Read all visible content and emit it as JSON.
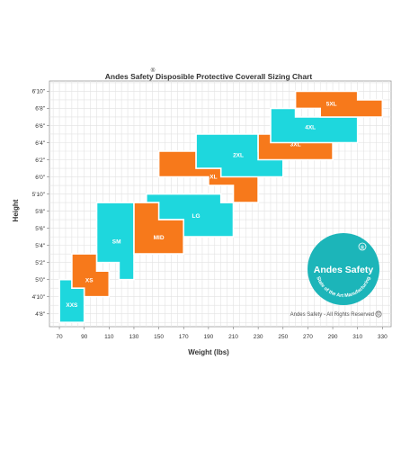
{
  "chart_data": {
    "type": "area",
    "title": "Andes Safety Disposible Protective Coverall Sizing Chart",
    "title_mark": "®",
    "xlabel": "Weight (lbs)",
    "ylabel": "Height",
    "x_ticks": [
      70,
      90,
      110,
      130,
      150,
      170,
      190,
      210,
      230,
      250,
      270,
      290,
      310,
      330
    ],
    "y_ticks": [
      {
        "label": "4'8\"",
        "inches": 56
      },
      {
        "label": "4'10\"",
        "inches": 58
      },
      {
        "label": "5'0\"",
        "inches": 60
      },
      {
        "label": "5'2\"",
        "inches": 62
      },
      {
        "label": "5'4\"",
        "inches": 64
      },
      {
        "label": "5'6\"",
        "inches": 66
      },
      {
        "label": "5'8\"",
        "inches": 68
      },
      {
        "label": "5'10\"",
        "inches": 70
      },
      {
        "label": "6'0\"",
        "inches": 72
      },
      {
        "label": "6'2\"",
        "inches": 74
      },
      {
        "label": "6'4\"",
        "inches": 76
      },
      {
        "label": "6'6\"",
        "inches": 78
      },
      {
        "label": "6'8\"",
        "inches": 80
      },
      {
        "label": "6'10\"",
        "inches": 82
      }
    ],
    "xlim": [
      62,
      337
    ],
    "ylim": [
      54.5,
      83.2
    ],
    "grid": true,
    "colors": {
      "cyan": "#1ed7dd",
      "orange": "#f7791b"
    },
    "regions": [
      {
        "name": "XXS",
        "color": "cyan",
        "outline": [
          [
            70,
            60
          ],
          [
            90,
            60
          ],
          [
            90,
            55
          ],
          [
            70,
            55
          ]
        ],
        "label_at": [
          80,
          56.8
        ]
      },
      {
        "name": "SM",
        "color": "cyan",
        "outline": [
          [
            100,
            69
          ],
          [
            130,
            69
          ],
          [
            130,
            60
          ],
          [
            118,
            60
          ],
          [
            118,
            62
          ],
          [
            100,
            62
          ]
        ],
        "label_at": [
          116,
          64.2
        ]
      },
      {
        "name": "XS",
        "color": "orange",
        "outline": [
          [
            80,
            63
          ],
          [
            100,
            63
          ],
          [
            100,
            61
          ],
          [
            110,
            61
          ],
          [
            110,
            58
          ],
          [
            90,
            58
          ],
          [
            90,
            59
          ],
          [
            80,
            59
          ]
        ],
        "label_at": [
          94,
          59.7
        ]
      },
      {
        "name": "LG",
        "color": "cyan",
        "outline": [
          [
            140,
            70
          ],
          [
            200,
            70
          ],
          [
            200,
            69
          ],
          [
            210,
            69
          ],
          [
            210,
            65
          ],
          [
            170,
            65
          ],
          [
            170,
            67
          ],
          [
            140,
            67
          ]
        ],
        "label_at": [
          180,
          67.2
        ]
      },
      {
        "name": "MID",
        "color": "orange",
        "outline": [
          [
            130,
            69
          ],
          [
            150,
            69
          ],
          [
            150,
            67
          ],
          [
            170,
            67
          ],
          [
            170,
            63
          ],
          [
            130,
            63
          ]
        ],
        "label_at": [
          150,
          64.7
        ]
      },
      {
        "name": "XL",
        "color": "orange",
        "outline": [
          [
            150,
            75
          ],
          [
            180,
            75
          ],
          [
            180,
            73
          ],
          [
            230,
            73
          ],
          [
            230,
            69
          ],
          [
            210,
            69
          ],
          [
            210,
            71
          ],
          [
            190,
            71
          ],
          [
            190,
            72
          ],
          [
            150,
            72
          ]
        ],
        "label_at": [
          194,
          71.8
        ]
      },
      {
        "name": "2XL",
        "color": "cyan",
        "outline": [
          [
            180,
            77
          ],
          [
            230,
            77
          ],
          [
            230,
            75
          ],
          [
            250,
            75
          ],
          [
            250,
            72
          ],
          [
            200,
            72
          ],
          [
            200,
            73
          ],
          [
            180,
            73
          ]
        ],
        "label_at": [
          214,
          74.3
        ]
      },
      {
        "name": "3XL",
        "color": "orange",
        "outline": [
          [
            230,
            77
          ],
          [
            290,
            77
          ],
          [
            290,
            74
          ],
          [
            230,
            74
          ]
        ],
        "label_at": [
          260,
          75.6
        ]
      },
      {
        "name": "4XL",
        "color": "cyan",
        "outline": [
          [
            240,
            80
          ],
          [
            260,
            80
          ],
          [
            260,
            79
          ],
          [
            310,
            79
          ],
          [
            310,
            76
          ],
          [
            240,
            76
          ]
        ],
        "label_at": [
          272,
          77.6
        ]
      },
      {
        "name": "5XL",
        "color": "orange",
        "outline": [
          [
            260,
            82
          ],
          [
            310,
            82
          ],
          [
            310,
            81
          ],
          [
            330,
            81
          ],
          [
            330,
            79
          ],
          [
            280,
            79
          ],
          [
            280,
            80
          ],
          [
            260,
            80
          ]
        ],
        "label_at": [
          289,
          80.3
        ]
      }
    ]
  },
  "logo": {
    "name": "Andes Safety",
    "mark": "®",
    "tagline": "State of the Art Manufacturing"
  },
  "copyright_text": "Andes Safety - All Rights Reserved",
  "copyright_mark": "©"
}
